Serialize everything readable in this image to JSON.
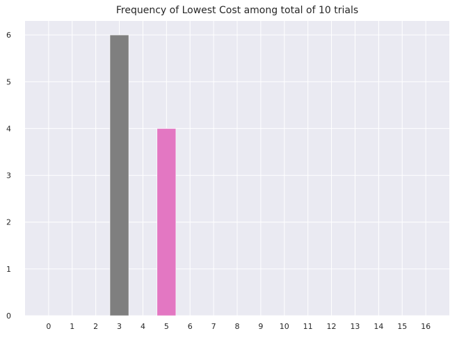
{
  "chart_data": {
    "type": "bar",
    "title": "Frequency of Lowest Cost among total of 10 trials",
    "xlabel": "",
    "ylabel": "",
    "categories": [
      "0",
      "1",
      "2",
      "3",
      "4",
      "5",
      "6",
      "7",
      "8",
      "9",
      "10",
      "11",
      "12",
      "13",
      "14",
      "15",
      "16"
    ],
    "values": [
      0,
      0,
      0,
      6,
      0,
      4,
      0,
      0,
      0,
      0,
      0,
      0,
      0,
      0,
      0,
      0,
      0
    ],
    "bar_colors": [
      "#1f77b4",
      "#ff7f0e",
      "#2ca02c",
      "#7f7f7f",
      "#9467bd",
      "#e377c2",
      "#8c564b",
      "#e377c2",
      "#7f7f7f",
      "#bcbd22",
      "#17becf",
      "#1f77b4",
      "#ff7f0e",
      "#2ca02c",
      "#d62728",
      "#9467bd",
      "#8c564b"
    ],
    "yticks": [
      0,
      1,
      2,
      3,
      4,
      5,
      6
    ],
    "ylim": [
      0,
      6.3
    ],
    "xlim": [
      -1,
      17
    ],
    "grid": true,
    "legend": "none",
    "colors": {
      "plot_background": "#eaeaf2",
      "grid": "#ffffff",
      "text": "#262626"
    }
  }
}
